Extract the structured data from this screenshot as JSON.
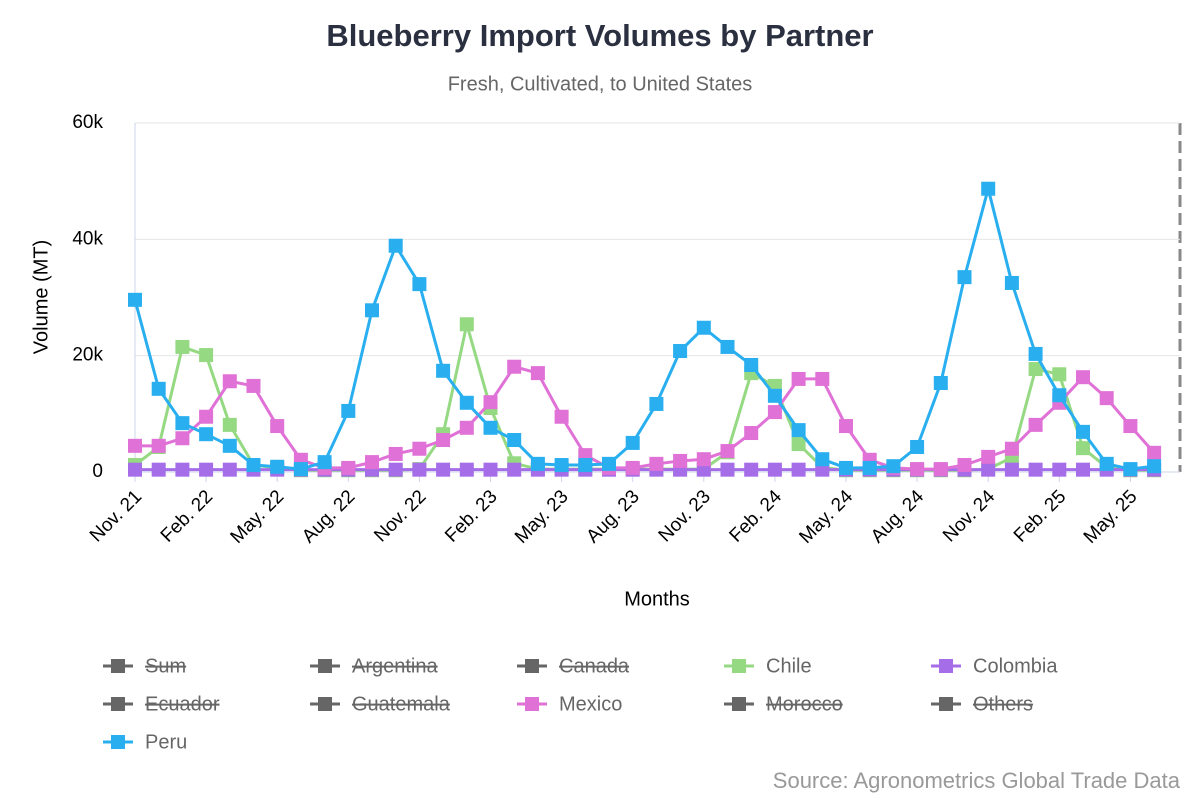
{
  "chart_data": {
    "type": "line",
    "title": "Blueberry Import Volumes by Partner",
    "subtitle": "Fresh, Cultivated, to United States",
    "x_label": "Months",
    "y_label": "Volume (MT)",
    "source": "Source: Agronometrics Global Trade Data",
    "categories": [
      "Nov. 21",
      null,
      null,
      "Feb. 22",
      null,
      null,
      "May. 22",
      null,
      null,
      "Aug. 22",
      null,
      null,
      "Nov. 22",
      null,
      null,
      "Feb. 23",
      null,
      null,
      "May. 23",
      null,
      null,
      "Aug. 23",
      null,
      null,
      "Nov. 23",
      null,
      null,
      "Feb. 24",
      null,
      null,
      "May. 24",
      null,
      null,
      "Aug. 24",
      null,
      null,
      "Nov. 24",
      null,
      null,
      "Feb. 25",
      null,
      null,
      "May. 25",
      null
    ],
    "ylim": [
      0,
      60000
    ],
    "yticks": [
      0,
      {
        "value": 20000,
        "label": "20k"
      },
      {
        "value": 40000,
        "label": "40k"
      },
      {
        "value": 60000,
        "label": "60k"
      }
    ],
    "grid": true,
    "legend": "bottom",
    "series": [
      {
        "name": "Sum",
        "visible": false
      },
      {
        "name": "Argentina",
        "visible": false
      },
      {
        "name": "Canada",
        "visible": false
      },
      {
        "name": "Chile",
        "color": "#95d982",
        "visible": true,
        "values": [
          1200,
          4300,
          21500,
          20100,
          8100,
          1200,
          700,
          300,
          300,
          300,
          300,
          300,
          500,
          6500,
          25400,
          11000,
          1500,
          500,
          500,
          500,
          500,
          500,
          500,
          500,
          500,
          3400,
          17000,
          14800,
          4800,
          800,
          300,
          300,
          300,
          300,
          300,
          300,
          500,
          2500,
          17700,
          16800,
          4100,
          800,
          300,
          300
        ]
      },
      {
        "name": "Colombia",
        "color": "#a56ee8",
        "visible": true,
        "values": [
          400,
          400,
          400,
          400,
          400,
          400,
          400,
          400,
          400,
          400,
          400,
          400,
          400,
          400,
          400,
          400,
          400,
          400,
          400,
          400,
          400,
          400,
          400,
          400,
          400,
          400,
          400,
          400,
          400,
          400,
          400,
          400,
          400,
          400,
          400,
          400,
          400,
          400,
          400,
          400,
          400,
          400,
          400,
          400
        ]
      },
      {
        "name": "Ecuador",
        "visible": false
      },
      {
        "name": "Guatemala",
        "visible": false
      },
      {
        "name": "Mexico",
        "color": "#e071d6",
        "visible": true,
        "values": [
          4500,
          4500,
          5800,
          9500,
          15600,
          14800,
          7900,
          2100,
          700,
          700,
          1700,
          3100,
          4000,
          5500,
          7600,
          12000,
          18100,
          17000,
          9500,
          2900,
          700,
          700,
          1400,
          1900,
          2200,
          3600,
          6700,
          10300,
          16000,
          16000,
          7900,
          2100,
          700,
          500,
          500,
          1200,
          2600,
          4000,
          8100,
          11900,
          16300,
          12700,
          7900,
          3300
        ]
      },
      {
        "name": "Morocco",
        "visible": false
      },
      {
        "name": "Others",
        "visible": false
      },
      {
        "name": "Peru",
        "color": "#29aff0",
        "visible": true,
        "values": [
          29600,
          14300,
          8400,
          6500,
          4500,
          1200,
          900,
          500,
          1700,
          10500,
          27800,
          38900,
          32300,
          17400,
          11900,
          7600,
          5500,
          1400,
          1200,
          1200,
          1400,
          5000,
          11700,
          20800,
          24800,
          21500,
          18400,
          13100,
          7200,
          2200,
          700,
          700,
          1000,
          4300,
          15300,
          33500,
          48700,
          32500,
          20300,
          13200,
          6900,
          1400,
          500,
          1000
        ]
      }
    ]
  }
}
